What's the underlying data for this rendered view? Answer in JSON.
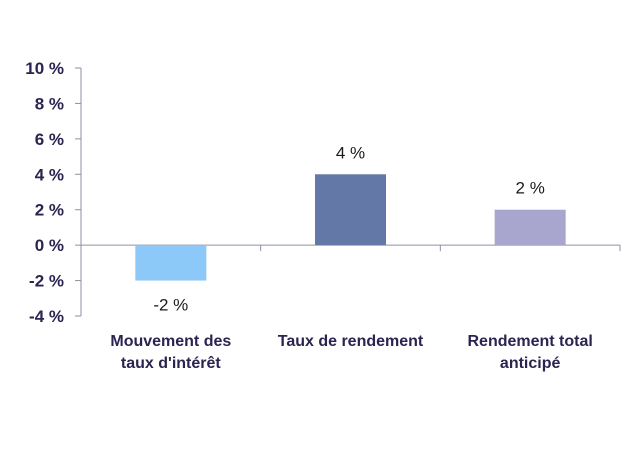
{
  "chart_data": {
    "type": "bar",
    "categories": [
      [
        "Mouvement des",
        "taux d'intérêt"
      ],
      [
        "Taux de rendement"
      ],
      [
        "Rendement total",
        "anticipé"
      ]
    ],
    "values": [
      -2,
      4,
      2
    ],
    "data_labels": [
      "-2 %",
      "4 %",
      "2 %"
    ],
    "bar_colors": [
      "#8cc8f8",
      "#6478a8",
      "#a8a5cf"
    ],
    "ylim": [
      -4,
      10
    ],
    "yticks": [
      10,
      8,
      6,
      4,
      2,
      0,
      -2,
      -4
    ],
    "ytick_labels": [
      "10 %",
      "8 %",
      "6 %",
      "4 %",
      "2 %",
      "0 %",
      "-2 %",
      "-4 %"
    ],
    "grid": false,
    "legend": "none",
    "title": "",
    "xlabel": "",
    "ylabel": ""
  }
}
